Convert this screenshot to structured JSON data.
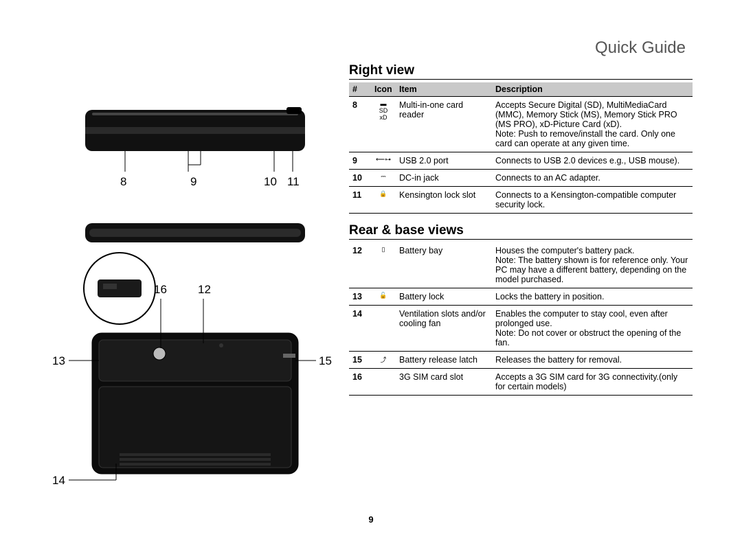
{
  "page_title": "Quick Guide",
  "page_number": "9",
  "diagram_callouts": {
    "side": [
      "8",
      "9",
      "10",
      "11"
    ],
    "base": [
      "12",
      "13",
      "14",
      "15",
      "16"
    ]
  },
  "right_view": {
    "heading": "Right view",
    "columns": [
      "#",
      "Icon",
      "Item",
      "Description"
    ],
    "rows": [
      {
        "num": "8",
        "icon": "▬\nSD\nxD",
        "item": "Multi-in-one card reader",
        "desc": "Accepts Secure Digital (SD), MultiMediaCard (MMC), Memory Stick (MS), Memory Stick PRO (MS PRO), xD-Picture Card (xD).\nNote: Push to remove/install the card. Only one card can operate at any given time."
      },
      {
        "num": "9",
        "icon": "⟵⊶",
        "item": "USB 2.0 port",
        "desc": "Connects to USB 2.0 devices e.g., USB mouse)."
      },
      {
        "num": "10",
        "icon": "⎓",
        "item": "DC-in jack",
        "desc": "Connects to an AC adapter."
      },
      {
        "num": "11",
        "icon": "🔒",
        "item": "Kensington lock slot",
        "desc": "Connects to a Kensington-compatible computer security lock."
      }
    ]
  },
  "rear_base": {
    "heading": "Rear & base views",
    "rows": [
      {
        "num": "12",
        "icon": "▯",
        "item": "Battery bay",
        "desc": "Houses the computer's battery pack.\nNote: The battery shown is for reference only. Your PC may have a different battery, depending on the model purchased."
      },
      {
        "num": "13",
        "icon": "🔓",
        "item": "Battery lock",
        "desc": "Locks the battery in position."
      },
      {
        "num": "14",
        "icon": "",
        "item": "Ventilation slots and/or cooling fan",
        "desc": "Enables the computer to stay cool, even after prolonged use.\nNote: Do not cover or obstruct the opening of the fan."
      },
      {
        "num": "15",
        "icon": "⤴",
        "item": "Battery release latch",
        "desc": "Releases the battery for removal."
      },
      {
        "num": "16",
        "icon": "",
        "item": "3G SIM card slot",
        "desc": "Accepts a 3G SIM card for 3G connectivity.(only for certain models)"
      }
    ]
  },
  "colors": {
    "header_bg": "#c9c9c9",
    "rule": "#000000",
    "title": "#555555"
  }
}
